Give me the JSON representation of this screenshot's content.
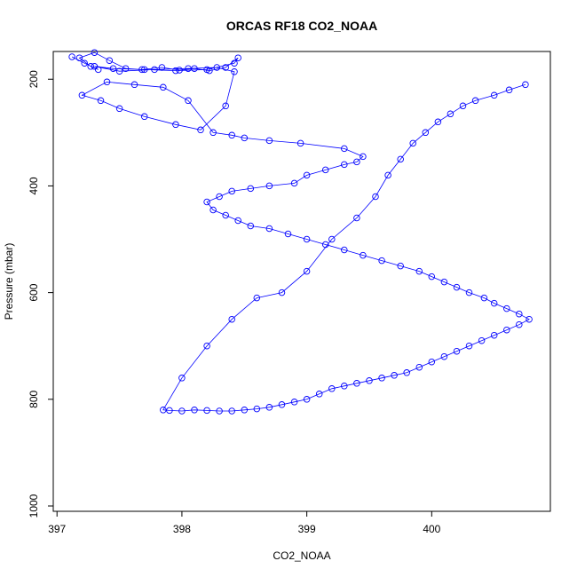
{
  "chart_data": {
    "type": "scatter",
    "title": "ORCAS RF18 CO2_NOAA",
    "xlabel": "CO2_NOAA",
    "ylabel": "Pressure (mbar)",
    "xlim": [
      396.97,
      400.95
    ],
    "ylim": [
      1010,
      148
    ],
    "y_axis_inverted": true,
    "x_ticks": [
      397,
      398,
      399,
      400
    ],
    "y_ticks": [
      200,
      400,
      600,
      800,
      1000
    ],
    "grid": false,
    "legend": "none",
    "marker": "open-circle",
    "connected_by_line": true,
    "color": "#0000ff",
    "series": [
      {
        "x": [
          397.12,
          397.22,
          397.33,
          397.27,
          397.18,
          397.3,
          397.42,
          397.55,
          397.68,
          397.84,
          397.98,
          398.1,
          398.22,
          398.35,
          398.45,
          398.42,
          398.2,
          397.95,
          397.7,
          397.45,
          397.3,
          397.5,
          397.78,
          398.05,
          398.28,
          398.42,
          398.35,
          398.15,
          397.95,
          397.7,
          397.5,
          397.35,
          397.2,
          397.4,
          397.62,
          397.85,
          398.05,
          398.25,
          398.4,
          398.5,
          398.7,
          398.95,
          399.3,
          399.45,
          399.4,
          399.3,
          399.15,
          399.0,
          398.9,
          398.7,
          398.55,
          398.4,
          398.3,
          398.2,
          398.25,
          398.35,
          398.45,
          398.55,
          398.7,
          398.85,
          399.0,
          399.15,
          399.3,
          399.45,
          399.6,
          399.75,
          399.9,
          400.0,
          400.1,
          400.2,
          400.3,
          400.42,
          400.5,
          400.6,
          400.7,
          400.78,
          400.7,
          400.6,
          400.5,
          400.4,
          400.3,
          400.2,
          400.1,
          400.0,
          399.9,
          399.8,
          399.7,
          399.6,
          399.5,
          399.4,
          399.3,
          399.2,
          399.1,
          399.0,
          398.9,
          398.8,
          398.7,
          398.6,
          398.5,
          398.4,
          398.3,
          398.2,
          398.1,
          398.0,
          397.9,
          397.85,
          398.0,
          398.2,
          398.4,
          398.6,
          398.8,
          399.0,
          399.2,
          399.4,
          399.55,
          399.65,
          399.75,
          399.85,
          399.95,
          400.05,
          400.15,
          400.25,
          400.35,
          400.5,
          400.62,
          400.75
        ],
        "y": [
          158,
          170,
          182,
          176,
          160,
          150,
          165,
          180,
          182,
          178,
          183,
          180,
          184,
          178,
          160,
          170,
          182,
          184,
          182,
          180,
          176,
          185,
          182,
          180,
          178,
          186,
          250,
          295,
          285,
          270,
          255,
          240,
          230,
          205,
          210,
          215,
          240,
          300,
          305,
          310,
          315,
          320,
          330,
          345,
          355,
          360,
          370,
          380,
          395,
          400,
          405,
          410,
          420,
          430,
          445,
          455,
          465,
          475,
          480,
          490,
          500,
          510,
          520,
          530,
          540,
          550,
          560,
          570,
          580,
          590,
          600,
          610,
          620,
          630,
          640,
          650,
          660,
          670,
          680,
          690,
          700,
          710,
          720,
          730,
          740,
          750,
          755,
          760,
          765,
          770,
          775,
          780,
          790,
          800,
          805,
          810,
          815,
          818,
          820,
          822,
          822,
          821,
          820,
          822,
          821,
          820,
          760,
          700,
          650,
          610,
          600,
          560,
          500,
          460,
          420,
          380,
          350,
          320,
          300,
          280,
          265,
          250,
          240,
          230,
          220,
          210
        ]
      }
    ]
  }
}
